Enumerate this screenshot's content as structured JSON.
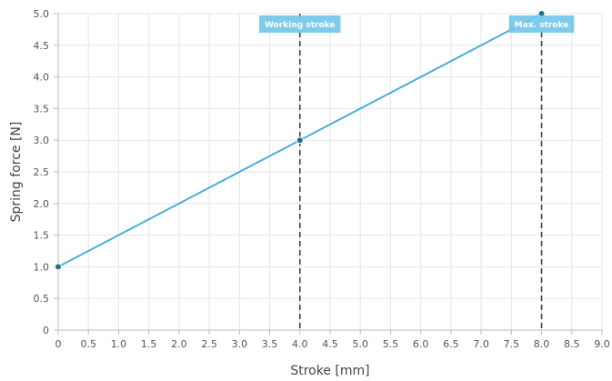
{
  "chart_data": {
    "type": "line",
    "xlabel": "Stroke [mm]",
    "ylabel": "Spring force [N]",
    "xlim": [
      0,
      9.0
    ],
    "ylim": [
      0,
      5.0
    ],
    "x_ticks": [
      "0",
      "0.5",
      "1.0",
      "1.5",
      "2.0",
      "2.5",
      "3.0",
      "3.5",
      "4.0",
      "4.5",
      "5.0",
      "5.5",
      "6.0",
      "6.5",
      "7.0",
      "7.5",
      "8.0",
      "8.5",
      "9.0"
    ],
    "y_ticks": [
      "0",
      "0.5",
      "1.0",
      "1.5",
      "2.0",
      "2.5",
      "3.0",
      "3.5",
      "4.0",
      "4.5",
      "5.0"
    ],
    "grid": true,
    "series": [
      {
        "color": "#4aafd8",
        "points": [
          {
            "x": 0,
            "y": 1.0
          },
          {
            "x": 4.0,
            "y": 3.0
          },
          {
            "x": 8.0,
            "y": 5.0
          }
        ]
      }
    ],
    "annotations": [
      {
        "label": "Working stroke",
        "x": 4.0
      },
      {
        "label": "Max. stroke",
        "x": 8.0
      }
    ],
    "colors": {
      "line": "#4aafd8",
      "marker": "#1f6f92",
      "annotation_box": "#74c7ea",
      "grid": "#e6e6e6",
      "axis": "#bbbbbb",
      "annotation_line": "#444444"
    }
  }
}
